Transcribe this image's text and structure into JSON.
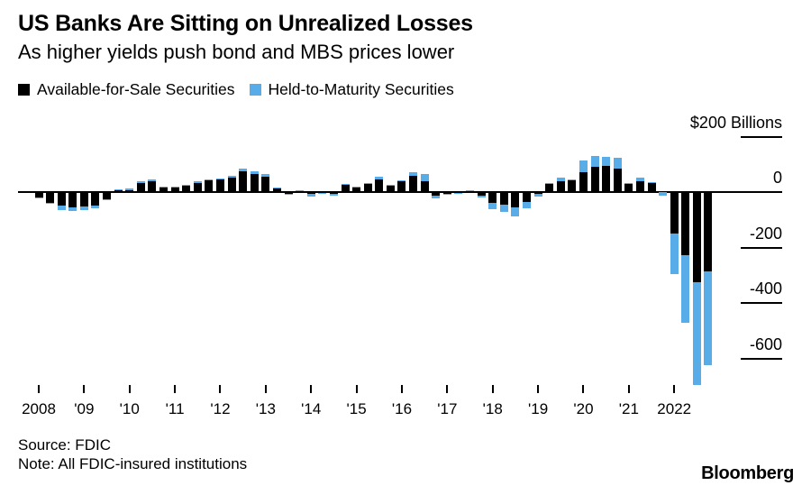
{
  "header": {
    "title": "US Banks Are Sitting on Unrealized Losses",
    "subtitle": "As higher yields push bond and MBS prices lower"
  },
  "legend": [
    {
      "label": "Available-for-Sale Securities",
      "color": "#000000"
    },
    {
      "label": "Held-to-Maturity Securities",
      "color": "#58ADE8"
    }
  ],
  "chart_data": {
    "type": "bar",
    "stacked": true,
    "unit": "$ Billions",
    "frequency": "quarterly",
    "period_start": "2008 Q1",
    "period_end": "2022 Q4",
    "series": [
      {
        "name": "Available-for-Sale Securities",
        "color": "#000000",
        "values": [
          -20,
          -38,
          -49,
          -54,
          -52,
          -49,
          -25,
          5,
          8,
          34,
          40,
          17,
          15,
          22,
          34,
          41,
          44,
          52,
          74,
          64,
          56,
          14,
          -6,
          4,
          -8,
          -3,
          -7,
          26,
          17,
          28,
          46,
          24,
          38,
          57,
          38,
          -12,
          -6,
          -2,
          4,
          -12,
          -39,
          -46,
          -55,
          -37,
          -5,
          31,
          40,
          41,
          70,
          92,
          95,
          85,
          31,
          39,
          33,
          0,
          -150,
          -228,
          -325,
          -285
        ]
      },
      {
        "name": "Held-to-Maturity Securities",
        "color": "#58ADE8",
        "values": [
          -2,
          -4,
          -16,
          -13,
          -13,
          -8,
          -3,
          5,
          5,
          5,
          6,
          3,
          3,
          4,
          5,
          5,
          5,
          6,
          10,
          10,
          8,
          3,
          -4,
          2,
          -8,
          -2,
          -6,
          4,
          3,
          5,
          10,
          2,
          5,
          13,
          27,
          -11,
          -4,
          -1,
          1,
          -8,
          -23,
          -26,
          -33,
          -22,
          -10,
          2,
          13,
          5,
          45,
          39,
          33,
          40,
          2,
          13,
          3,
          -13,
          -145,
          -242,
          -370,
          -340
        ]
      }
    ],
    "x_axis": {
      "tick_labels": [
        "2008",
        "'09",
        "'10",
        "'11",
        "'12",
        "'13",
        "'14",
        "'15",
        "'16",
        "'17",
        "'18",
        "'19",
        "'20",
        "'21",
        "2022"
      ],
      "ticks_every_quarters": 4
    },
    "y_axis": {
      "ticks": [
        {
          "label": "$200 Billions",
          "value": 200
        },
        {
          "label": "0",
          "value": 0
        },
        {
          "label": "-200",
          "value": -200
        },
        {
          "label": "-400",
          "value": -400
        },
        {
          "label": "-600",
          "value": -600
        }
      ],
      "range": [
        -760,
        220
      ],
      "side": "right"
    }
  },
  "footer": {
    "source": "Source: FDIC",
    "note": "Note: All FDIC-insured institutions",
    "logo": "Bloomberg"
  }
}
